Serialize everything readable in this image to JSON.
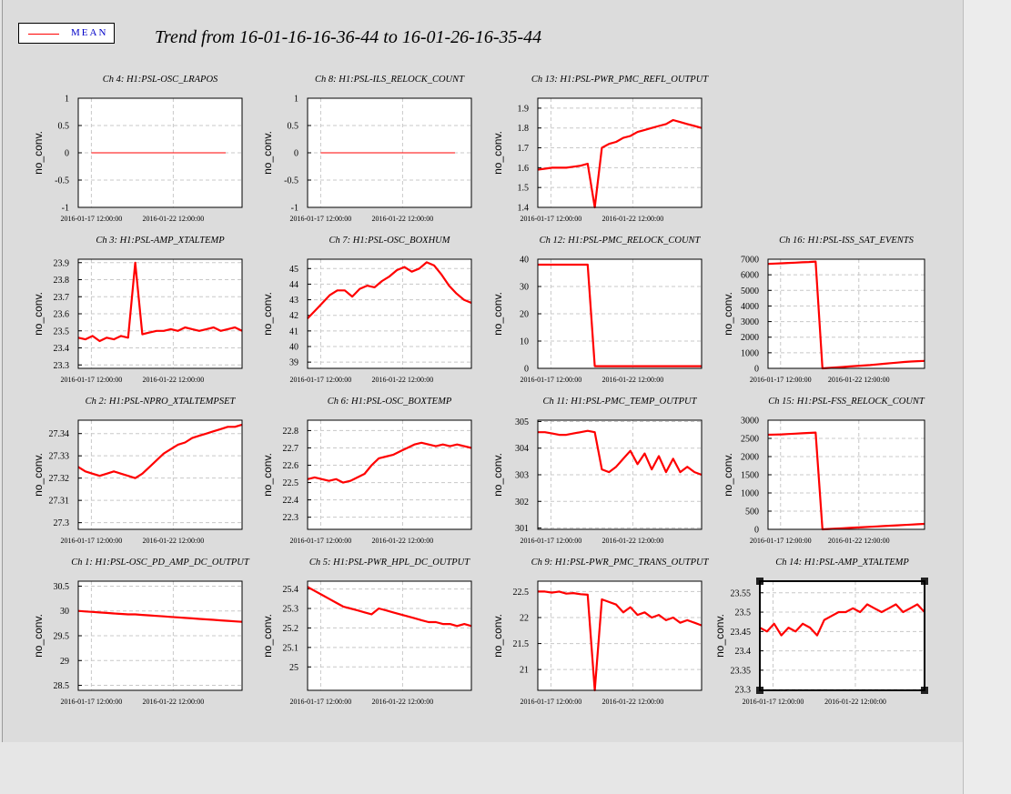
{
  "legend": {
    "label": "MEAN",
    "color": "#ff0000"
  },
  "title": "Trend from 16-01-16-16-36-44 to 16-01-26-16-35-44",
  "colors": {
    "series": "#ff0000",
    "grid": "#c8c8c8",
    "frame": "#000000",
    "canvas_bg": "#dcdcdc"
  },
  "chart_data": [
    {
      "id": "ch4",
      "type": "line",
      "title": "Ch 4: H1:PSL-OSC_LRAPOS",
      "ylabel": "no_conv.",
      "yticks": [
        1,
        0.5,
        0,
        -0.5,
        -1
      ],
      "ylim": [
        -1,
        1
      ],
      "xticks": [
        "2016-01-17 12:00:00",
        "2016-01-22 12:00:00"
      ],
      "series": [
        {
          "values": [
            0,
            0
          ]
        }
      ]
    },
    {
      "id": "ch8",
      "type": "line",
      "title": "Ch 8: H1:PSL-ILS_RELOCK_COUNT",
      "ylabel": "no_conv.",
      "yticks": [
        1,
        0.5,
        0,
        -0.5,
        -1
      ],
      "ylim": [
        -1,
        1
      ],
      "xticks": [
        "2016-01-17 12:00:00",
        "2016-01-22 12:00:00"
      ],
      "series": [
        {
          "values": [
            0,
            0
          ]
        }
      ]
    },
    {
      "id": "ch13",
      "type": "line",
      "title": "Ch 13: H1:PSL-PWR_PMC_REFL_OUTPUT",
      "ylabel": "no_conv.",
      "yticks": [
        1.9,
        1.8,
        1.7,
        1.6,
        1.5,
        1.4
      ],
      "ylim": [
        1.4,
        1.95
      ],
      "xticks": [
        "2016-01-17 12:00:00",
        "2016-01-22 12:00:00"
      ],
      "series": [
        {
          "values": [
            1.59,
            1.595,
            1.6,
            1.6,
            1.6,
            1.605,
            1.61,
            1.62,
            1.4,
            1.7,
            1.72,
            1.73,
            1.75,
            1.76,
            1.78,
            1.79,
            1.8,
            1.81,
            1.82,
            1.84,
            1.83,
            1.82,
            1.81,
            1.8
          ]
        }
      ]
    },
    {
      "id": "ch3",
      "type": "line",
      "title": "Ch 3: H1:PSL-AMP_XTALTEMP",
      "ylabel": "no_conv.",
      "yticks": [
        23.9,
        23.8,
        23.7,
        23.6,
        23.5,
        23.4,
        23.3
      ],
      "ylim": [
        23.28,
        23.92
      ],
      "xticks": [
        "2016-01-17 12:00:00",
        "2016-01-22 12:00:00"
      ],
      "series": [
        {
          "values": [
            23.46,
            23.45,
            23.47,
            23.44,
            23.46,
            23.45,
            23.47,
            23.46,
            23.9,
            23.48,
            23.49,
            23.5,
            23.5,
            23.51,
            23.5,
            23.52,
            23.51,
            23.5,
            23.51,
            23.52,
            23.5,
            23.51,
            23.52,
            23.5
          ]
        }
      ]
    },
    {
      "id": "ch7",
      "type": "line",
      "title": "Ch 7: H1:PSL-OSC_BOXHUM",
      "ylabel": "no_conv.",
      "yticks": [
        45,
        44,
        43,
        42,
        41,
        40,
        39
      ],
      "ylim": [
        38.6,
        45.6
      ],
      "xticks": [
        "2016-01-17 12:00:00",
        "2016-01-22 12:00:00"
      ],
      "series": [
        {
          "values": [
            41.8,
            42.3,
            42.8,
            43.3,
            43.6,
            43.6,
            43.2,
            43.7,
            43.9,
            43.8,
            44.2,
            44.5,
            44.9,
            45.1,
            44.8,
            45.0,
            45.4,
            45.2,
            44.6,
            43.9,
            43.4,
            43.0,
            42.8
          ]
        }
      ]
    },
    {
      "id": "ch12",
      "type": "line",
      "title": "Ch 12: H1:PSL-PMC_RELOCK_COUNT",
      "ylabel": "no_conv.",
      "yticks": [
        40,
        30,
        20,
        10,
        0
      ],
      "ylim": [
        0,
        40
      ],
      "xticks": [
        "2016-01-17 12:00:00",
        "2016-01-22 12:00:00"
      ],
      "series": [
        {
          "values": [
            38,
            38,
            38,
            38,
            38,
            38,
            38,
            38,
            0.8,
            0.8,
            0.8,
            0.8,
            0.8,
            0.8,
            0.8,
            0.8,
            0.8,
            0.8,
            0.8,
            0.8,
            0.8,
            0.8,
            0.8,
            0.8
          ]
        }
      ]
    },
    {
      "id": "ch16",
      "type": "line",
      "title": "Ch 16: H1:PSL-ISS_SAT_EVENTS",
      "ylabel": "no_conv.",
      "yticks": [
        7000,
        6000,
        5000,
        4000,
        3000,
        2000,
        1000,
        0
      ],
      "ylim": [
        0,
        7000
      ],
      "xticks": [
        "2016-01-17 12:00:00",
        "2016-01-22 12:00:00"
      ],
      "series": [
        {
          "values": [
            6700,
            6720,
            6740,
            6760,
            6780,
            6800,
            6820,
            6850,
            0,
            30,
            60,
            90,
            120,
            150,
            180,
            210,
            250,
            290,
            330,
            370,
            410,
            440,
            460,
            480
          ]
        }
      ]
    },
    {
      "id": "ch2",
      "type": "line",
      "title": "Ch 2: H1:PSL-NPRO_XTALTEMPSET",
      "ylabel": "no_conv.",
      "yticks": [
        27.34,
        27.33,
        27.32,
        27.31,
        27.3
      ],
      "ylim": [
        27.297,
        27.346
      ],
      "xticks": [
        "2016-01-17 12:00:00",
        "2016-01-22 12:00:00"
      ],
      "series": [
        {
          "values": [
            27.325,
            27.323,
            27.322,
            27.321,
            27.322,
            27.323,
            27.322,
            27.321,
            27.32,
            27.322,
            27.325,
            27.328,
            27.331,
            27.333,
            27.335,
            27.336,
            27.338,
            27.339,
            27.34,
            27.341,
            27.342,
            27.343,
            27.343,
            27.344
          ]
        }
      ]
    },
    {
      "id": "ch6",
      "type": "line",
      "title": "Ch 6: H1:PSL-OSC_BOXTEMP",
      "ylabel": "no_conv.",
      "yticks": [
        22.8,
        22.7,
        22.6,
        22.5,
        22.4,
        22.3
      ],
      "ylim": [
        22.23,
        22.86
      ],
      "xticks": [
        "2016-01-17 12:00:00",
        "2016-01-22 12:00:00"
      ],
      "series": [
        {
          "values": [
            22.52,
            22.53,
            22.52,
            22.51,
            22.52,
            22.5,
            22.51,
            22.53,
            22.55,
            22.6,
            22.64,
            22.65,
            22.66,
            22.68,
            22.7,
            22.72,
            22.73,
            22.72,
            22.71,
            22.72,
            22.71,
            22.72,
            22.71,
            22.7
          ]
        }
      ]
    },
    {
      "id": "ch11",
      "type": "line",
      "title": "Ch 11: H1:PSL-PMC_TEMP_OUTPUT",
      "ylabel": "no_conv.",
      "yticks": [
        305,
        304,
        303,
        302,
        301
      ],
      "ylim": [
        300.95,
        305.05
      ],
      "xticks": [
        "2016-01-17 12:00:00",
        "2016-01-22 12:00:00"
      ],
      "series": [
        {
          "values": [
            304.6,
            304.6,
            304.55,
            304.5,
            304.5,
            304.55,
            304.6,
            304.65,
            304.6,
            303.2,
            303.1,
            303.3,
            303.6,
            303.9,
            303.4,
            303.8,
            303.2,
            303.7,
            303.1,
            303.6,
            303.1,
            303.3,
            303.1,
            303.0
          ]
        }
      ]
    },
    {
      "id": "ch15",
      "type": "line",
      "title": "Ch 15: H1:PSL-FSS_RELOCK_COUNT",
      "ylabel": "no_conv.",
      "yticks": [
        3000,
        2500,
        2000,
        1500,
        1000,
        500,
        0
      ],
      "ylim": [
        0,
        3000
      ],
      "xticks": [
        "2016-01-17 12:00:00",
        "2016-01-22 12:00:00"
      ],
      "series": [
        {
          "values": [
            2600,
            2605,
            2610,
            2620,
            2630,
            2640,
            2650,
            2660,
            0,
            10,
            20,
            30,
            40,
            50,
            60,
            70,
            80,
            90,
            100,
            110,
            120,
            130,
            140,
            150
          ]
        }
      ]
    },
    {
      "id": "ch1",
      "type": "line",
      "title": "Ch 1: H1:PSL-OSC_PD_AMP_DC_OUTPUT",
      "ylabel": "no_conv.",
      "yticks": [
        30.5,
        30,
        29.5,
        29,
        28.5
      ],
      "ylim": [
        28.4,
        30.6
      ],
      "xticks": [
        "2016-01-17 12:00:00",
        "2016-01-22 12:00:00"
      ],
      "series": [
        {
          "values": [
            30.0,
            29.99,
            29.98,
            29.97,
            29.96,
            29.95,
            29.94,
            29.93,
            29.93,
            29.92,
            29.91,
            29.9,
            29.89,
            29.88,
            29.87,
            29.86,
            29.85,
            29.84,
            29.83,
            29.82,
            29.81,
            29.8,
            29.79,
            29.78
          ]
        }
      ]
    },
    {
      "id": "ch5",
      "type": "line",
      "title": "Ch 5: H1:PSL-PWR_HPL_DC_OUTPUT",
      "ylabel": "no_conv.",
      "yticks": [
        25.4,
        25.3,
        25.2,
        25.1,
        25
      ],
      "ylim": [
        24.88,
        25.44
      ],
      "xticks": [
        "2016-01-17 12:00:00",
        "2016-01-22 12:00:00"
      ],
      "series": [
        {
          "values": [
            25.41,
            25.39,
            25.37,
            25.35,
            25.33,
            25.31,
            25.3,
            25.29,
            25.28,
            25.27,
            25.3,
            25.29,
            25.28,
            25.27,
            25.26,
            25.25,
            25.24,
            25.23,
            25.23,
            25.22,
            25.22,
            25.21,
            25.22,
            25.21
          ]
        }
      ]
    },
    {
      "id": "ch9",
      "type": "line",
      "title": "Ch 9: H1:PSL-PWR_PMC_TRANS_OUTPUT",
      "ylabel": "no_conv.",
      "yticks": [
        22.5,
        22,
        21.5,
        21
      ],
      "ylim": [
        20.6,
        22.7
      ],
      "xticks": [
        "2016-01-17 12:00:00",
        "2016-01-22 12:00:00"
      ],
      "series": [
        {
          "values": [
            22.5,
            22.5,
            22.48,
            22.5,
            22.46,
            22.47,
            22.45,
            22.44,
            20.6,
            22.35,
            22.3,
            22.25,
            22.1,
            22.2,
            22.05,
            22.1,
            22.0,
            22.05,
            21.95,
            22.0,
            21.9,
            21.95,
            21.9,
            21.85
          ]
        }
      ]
    },
    {
      "id": "ch14",
      "type": "line",
      "title": "Ch 14: H1:PSL-AMP_XTALTEMP",
      "ylabel": "no_conv.",
      "yticks": [
        23.55,
        23.5,
        23.45,
        23.4,
        23.35,
        23.3
      ],
      "ylim": [
        23.298,
        23.58
      ],
      "xticks": [
        "2016-01-17 12:00:00",
        "2016-01-22 12:00:00"
      ],
      "series": [
        {
          "values": [
            23.46,
            23.45,
            23.47,
            23.44,
            23.46,
            23.45,
            23.47,
            23.46,
            23.44,
            23.48,
            23.49,
            23.5,
            23.5,
            23.51,
            23.5,
            23.52,
            23.51,
            23.5,
            23.51,
            23.52,
            23.5,
            23.51,
            23.52,
            23.5
          ]
        }
      ]
    }
  ]
}
